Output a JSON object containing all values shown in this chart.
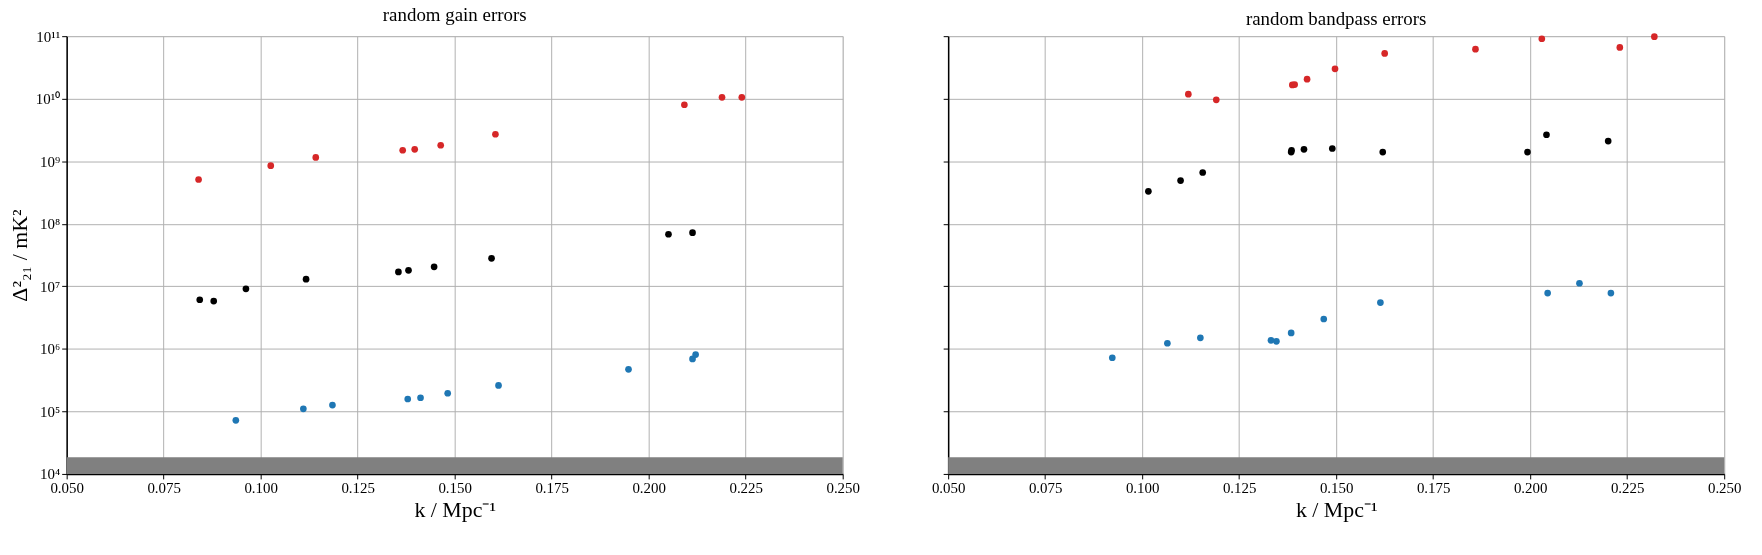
{
  "chart_data": [
    {
      "type": "scatter",
      "title": "random gain errors",
      "xlabel": "k / Mpc⁻¹",
      "ylabel": "Δ²₂₁ / mK²",
      "log": "y",
      "grid": true,
      "legend": false,
      "marker": "circle",
      "xlim": [
        0.05,
        0.25
      ],
      "xticks": [
        {
          "value": 0.05,
          "label": "0.050"
        },
        {
          "value": 0.075,
          "label": "0.075"
        },
        {
          "value": 0.1,
          "label": "0.100"
        },
        {
          "value": 0.125,
          "label": "0.125"
        },
        {
          "value": 0.15,
          "label": "0.150"
        },
        {
          "value": 0.175,
          "label": "0.175"
        },
        {
          "value": 0.2,
          "label": "0.200"
        },
        {
          "value": 0.225,
          "label": "0.225"
        },
        {
          "value": 0.25,
          "label": "0.250"
        }
      ],
      "ylim": [
        10000,
        100000000000
      ],
      "yticks": [
        {
          "value": 10000,
          "label": "10⁴"
        },
        {
          "value": 100000,
          "label": "10⁵"
        },
        {
          "value": 1000000,
          "label": "10⁶"
        },
        {
          "value": 10000000,
          "label": "10⁷"
        },
        {
          "value": 100000000,
          "label": "10⁸"
        },
        {
          "value": 1000000000,
          "label": "10⁹"
        },
        {
          "value": 10000000000,
          "label": "10¹⁰"
        },
        {
          "value": 100000000000,
          "label": "10¹¹"
        }
      ],
      "bands": [
        {
          "axis": "y",
          "from": 10000,
          "to": 18500,
          "color": "#808080"
        }
      ],
      "series": [
        {
          "color": "#d62728",
          "x": [
            0.084,
            0.1026,
            0.1142,
            0.1366,
            0.1397,
            0.1464,
            0.1605,
            0.2092,
            0.2189,
            0.224
          ],
          "values": [
            510000000,
            850000000,
            1150000000,
            1500000000,
            1550000000,
            1800000000,
            2700000000,
            8000000000,
            10500000000,
            10500000000
          ]
        },
        {
          "color": "#000000",
          "x": [
            0.0843,
            0.0879,
            0.0962,
            0.1117,
            0.1355,
            0.1381,
            0.1447,
            0.1595,
            0.2051,
            0.2113
          ],
          "values": [
            6100000,
            5800000,
            9100000,
            13000000,
            17000000,
            18000000,
            20500000,
            28000000,
            68000000,
            72000000
          ]
        },
        {
          "color": "#1f77b4",
          "x": [
            0.0936,
            0.111,
            0.1185,
            0.1379,
            0.1412,
            0.1482,
            0.1613,
            0.1948,
            0.2113,
            0.2121
          ],
          "values": [
            72000,
            110000,
            126000,
            158000,
            165000,
            195000,
            260000,
            470000,
            690000,
            810000
          ]
        }
      ]
    },
    {
      "type": "scatter",
      "title": "random bandpass errors",
      "xlabel": "k / Mpc⁻¹",
      "log": "y",
      "grid": true,
      "legend": false,
      "marker": "circle",
      "tick_labels": "x",
      "xlim": [
        0.05,
        0.25
      ],
      "xticks": [
        {
          "value": 0.05,
          "label": "0.050"
        },
        {
          "value": 0.075,
          "label": "0.075"
        },
        {
          "value": 0.1,
          "label": "0.100"
        },
        {
          "value": 0.125,
          "label": "0.125"
        },
        {
          "value": 0.15,
          "label": "0.150"
        },
        {
          "value": 0.175,
          "label": "0.175"
        },
        {
          "value": 0.2,
          "label": "0.200"
        },
        {
          "value": 0.225,
          "label": "0.225"
        },
        {
          "value": 0.25,
          "label": "0.250"
        }
      ],
      "ylim": [
        10000,
        100000000000
      ],
      "yticks": [
        10000,
        100000,
        1000000,
        10000000,
        100000000,
        1000000000,
        10000000000,
        100000000000
      ],
      "bands": [
        {
          "axis": "y",
          "from": 10000,
          "to": 18500,
          "color": "#808080"
        }
      ],
      "series": [
        {
          "color": "#d62728",
          "x": [
            0.1119,
            0.1191,
            0.1387,
            0.1393,
            0.1425,
            0.1497,
            0.1625,
            0.1859,
            0.203,
            0.2231,
            0.232
          ],
          "values": [
            11800000000,
            9600000000,
            16600000000,
            16800000000,
            20500000000,
            30000000000,
            53000000000,
            62000000000,
            91000000000,
            66000000000,
            98000000000
          ]
        },
        {
          "color": "#000000",
          "x": [
            0.1016,
            0.1099,
            0.1156,
            0.1384,
            0.1385,
            0.1417,
            0.149,
            0.162,
            0.1993,
            0.2042,
            0.2201
          ],
          "values": [
            330000000,
            490000000,
            660000000,
            1400000000,
            1500000000,
            1550000000,
            1600000000,
            1400000000,
            1400000000,
            2650000000,
            2100000000
          ]
        },
        {
          "color": "#1f77b4",
          "x": [
            0.0923,
            0.1065,
            0.115,
            0.1332,
            0.1346,
            0.1384,
            0.1468,
            0.1614,
            0.2045,
            0.2127,
            0.2208
          ],
          "values": [
            720000,
            1230000,
            1500000,
            1370000,
            1320000,
            1800000,
            3000000,
            5500000,
            7800000,
            11200000,
            7800000
          ]
        }
      ]
    }
  ]
}
